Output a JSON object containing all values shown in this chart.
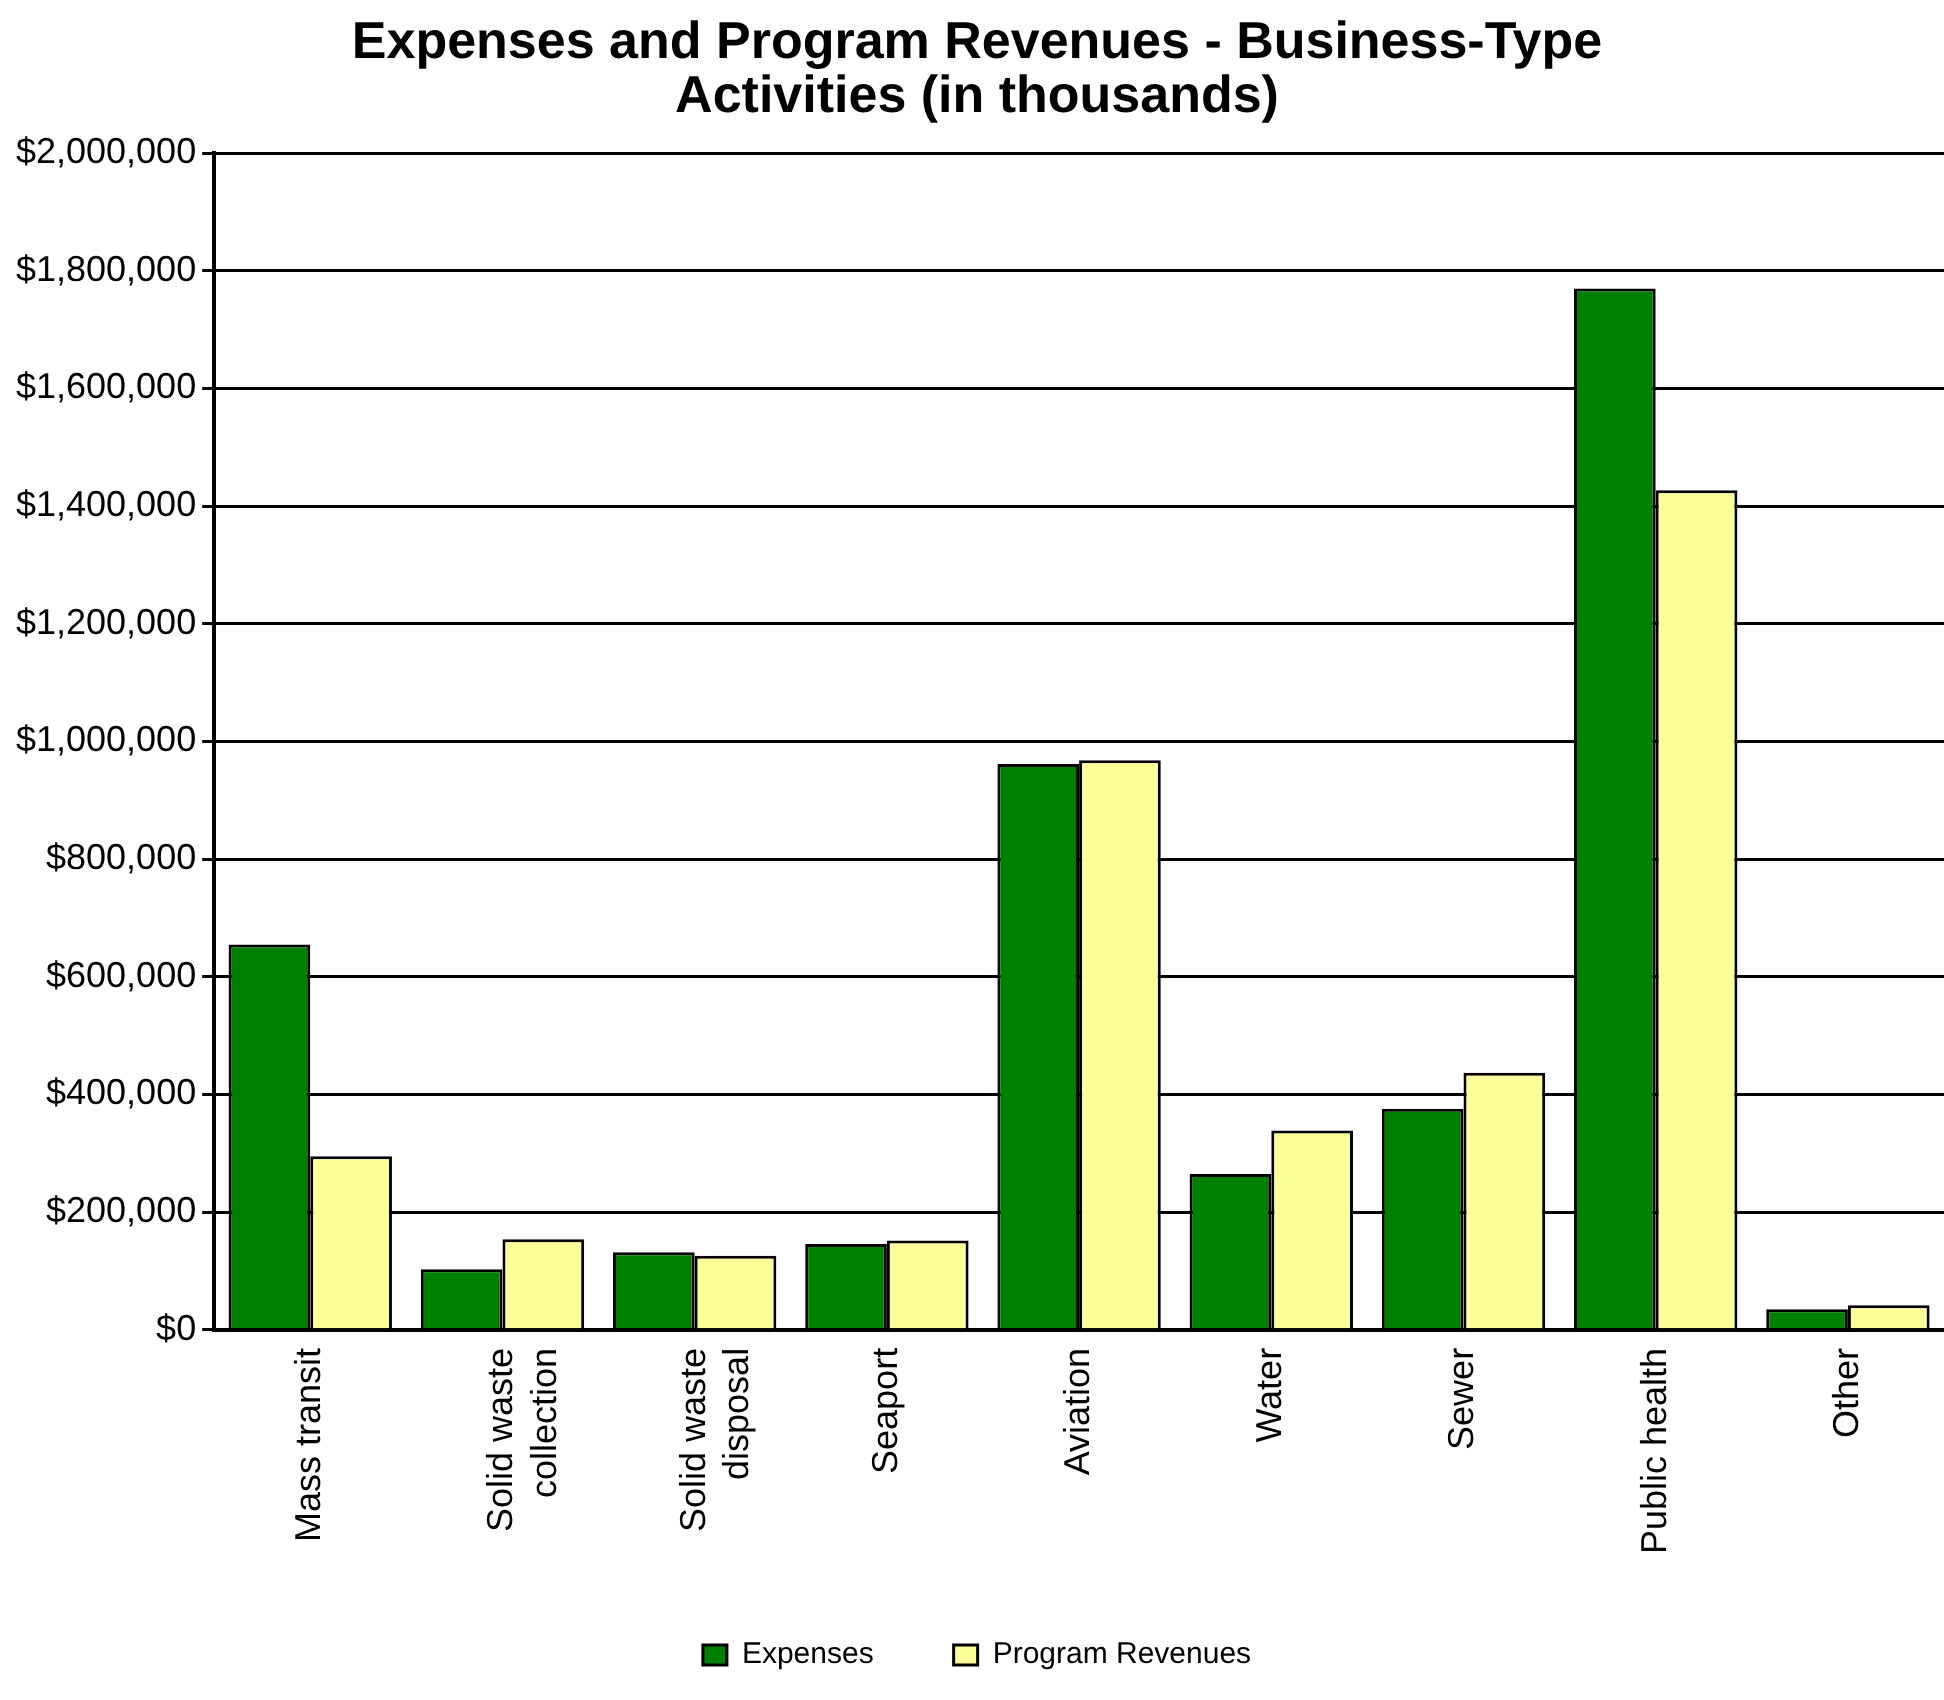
{
  "chart_data": {
    "type": "bar",
    "title": "Expenses and Program Revenues - Business-Type Activities (in thousands)",
    "categories": [
      "Mass transit",
      "Solid waste collection",
      "Solid waste disposal",
      "Seaport",
      "Aviation",
      "Water",
      "Sewer",
      "Public health",
      "Other"
    ],
    "series": [
      {
        "name": "Expenses",
        "color": "#008000",
        "values": [
          655000,
          103000,
          132000,
          146000,
          962000,
          265000,
          376000,
          1770000,
          35000
        ]
      },
      {
        "name": "Program Revenues",
        "color": "#ffff99",
        "values": [
          295000,
          154000,
          126000,
          152000,
          968000,
          339000,
          437000,
          1427000,
          42000
        ]
      }
    ],
    "ylim": [
      0,
      2000000
    ],
    "yticks": [
      {
        "value": 0,
        "label": "$0"
      },
      {
        "value": 200000,
        "label": "$200,000"
      },
      {
        "value": 400000,
        "label": "$400,000"
      },
      {
        "value": 600000,
        "label": "$600,000"
      },
      {
        "value": 800000,
        "label": "$800,000"
      },
      {
        "value": 1000000,
        "label": "$1,000,000"
      },
      {
        "value": 1200000,
        "label": "$1,200,000"
      },
      {
        "value": 1400000,
        "label": "$1,400,000"
      },
      {
        "value": 1600000,
        "label": "$1,600,000"
      },
      {
        "value": 1800000,
        "label": "$1,800,000"
      },
      {
        "value": 2000000,
        "label": "$2,000,000"
      }
    ],
    "grid": "y",
    "legend": "bottom"
  }
}
